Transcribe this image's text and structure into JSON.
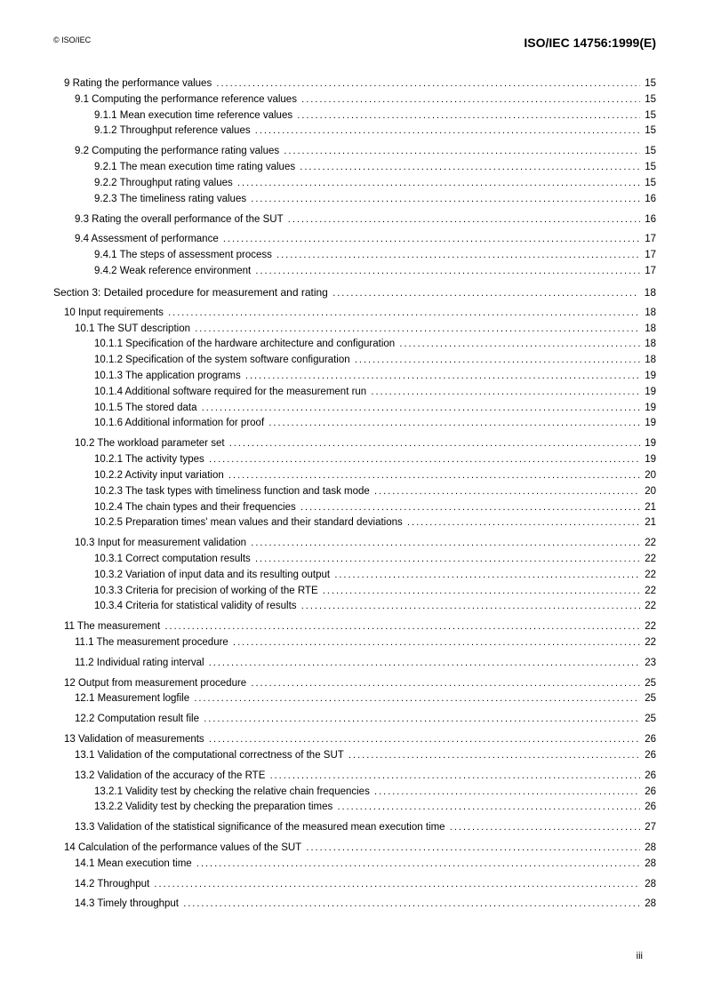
{
  "header": {
    "copyright": "© ISO/IEC",
    "standard_id": "ISO/IEC 14756:1999(E)"
  },
  "toc": [
    {
      "label": "9 Rating the performance values",
      "pg": "15",
      "lvl": 1,
      "gap": false,
      "sect": false
    },
    {
      "label": "9.1 Computing the performance reference values",
      "pg": "15",
      "lvl": 2,
      "gap": false,
      "sect": false
    },
    {
      "label": "9.1.1 Mean execution time reference values",
      "pg": "15",
      "lvl": 3,
      "gap": false,
      "sect": false
    },
    {
      "label": "9.1.2 Throughput reference values",
      "pg": "15",
      "lvl": 3,
      "gap": false,
      "sect": false
    },
    {
      "label": "9.2 Computing the performance rating values",
      "pg": "15",
      "lvl": 2,
      "gap": true,
      "sect": false
    },
    {
      "label": "9.2.1 The mean execution time rating values",
      "pg": "15",
      "lvl": 3,
      "gap": false,
      "sect": false
    },
    {
      "label": "9.2.2 Throughput rating values",
      "pg": "15",
      "lvl": 3,
      "gap": false,
      "sect": false
    },
    {
      "label": "9.2.3 The timeliness rating values",
      "pg": "16",
      "lvl": 3,
      "gap": false,
      "sect": false
    },
    {
      "label": "9.3 Rating the overall performance of the SUT",
      "pg": "16",
      "lvl": 2,
      "gap": true,
      "sect": false
    },
    {
      "label": "9.4 Assessment of performance",
      "pg": "17",
      "lvl": 2,
      "gap": true,
      "sect": false
    },
    {
      "label": "9.4.1 The steps of assessment process",
      "pg": "17",
      "lvl": 3,
      "gap": false,
      "sect": false
    },
    {
      "label": "9.4.2 Weak reference environment",
      "pg": "17",
      "lvl": 3,
      "gap": false,
      "sect": false
    },
    {
      "label": "Section 3: Detailed procedure for measurement and rating",
      "pg": "18",
      "lvl": 0,
      "gap": true,
      "sect": true
    },
    {
      "label": "10 Input requirements",
      "pg": "18",
      "lvl": 1,
      "gap": true,
      "sect": false
    },
    {
      "label": "10.1 The SUT description",
      "pg": "18",
      "lvl": 2,
      "gap": false,
      "sect": false
    },
    {
      "label": "10.1.1 Specification of the hardware architecture and configuration",
      "pg": "18",
      "lvl": 3,
      "gap": false,
      "sect": false
    },
    {
      "label": "10.1.2 Specification of the system software configuration",
      "pg": "18",
      "lvl": 3,
      "gap": false,
      "sect": false
    },
    {
      "label": "10.1.3 The application programs",
      "pg": "19",
      "lvl": 3,
      "gap": false,
      "sect": false
    },
    {
      "label": "10.1.4 Additional software required for the measurement run",
      "pg": "19",
      "lvl": 3,
      "gap": false,
      "sect": false
    },
    {
      "label": "10.1.5 The stored data",
      "pg": "19",
      "lvl": 3,
      "gap": false,
      "sect": false
    },
    {
      "label": "10.1.6 Additional information for proof",
      "pg": "19",
      "lvl": 3,
      "gap": false,
      "sect": false
    },
    {
      "label": "10.2 The workload parameter set",
      "pg": "19",
      "lvl": 2,
      "gap": true,
      "sect": false
    },
    {
      "label": "10.2.1 The activity types",
      "pg": "19",
      "lvl": 3,
      "gap": false,
      "sect": false
    },
    {
      "label": "10.2.2 Activity input variation",
      "pg": "20",
      "lvl": 3,
      "gap": false,
      "sect": false
    },
    {
      "label": "10.2.3 The task types with timeliness function and task mode",
      "pg": "20",
      "lvl": 3,
      "gap": false,
      "sect": false
    },
    {
      "label": "10.2.4 The chain types and their frequencies",
      "pg": "21",
      "lvl": 3,
      "gap": false,
      "sect": false
    },
    {
      "label": "10.2.5 Preparation times' mean values and their standard deviations",
      "pg": "21",
      "lvl": 3,
      "gap": false,
      "sect": false
    },
    {
      "label": "10.3 Input for measurement validation",
      "pg": "22",
      "lvl": 2,
      "gap": true,
      "sect": false
    },
    {
      "label": "10.3.1 Correct computation results",
      "pg": "22",
      "lvl": 3,
      "gap": false,
      "sect": false
    },
    {
      "label": "10.3.2 Variation of input data and its resulting output",
      "pg": "22",
      "lvl": 3,
      "gap": false,
      "sect": false
    },
    {
      "label": "10.3.3 Criteria for precision of working of the RTE",
      "pg": "22",
      "lvl": 3,
      "gap": false,
      "sect": false
    },
    {
      "label": "10.3.4 Criteria for statistical validity of results",
      "pg": "22",
      "lvl": 3,
      "gap": false,
      "sect": false
    },
    {
      "label": "11 The measurement",
      "pg": "22",
      "lvl": 1,
      "gap": true,
      "sect": false
    },
    {
      "label": "11.1 The measurement procedure",
      "pg": "22",
      "lvl": 2,
      "gap": false,
      "sect": false
    },
    {
      "label": "11.2 Individual rating interval",
      "pg": "23",
      "lvl": 2,
      "gap": true,
      "sect": false
    },
    {
      "label": "12 Output from measurement procedure",
      "pg": "25",
      "lvl": 1,
      "gap": true,
      "sect": false
    },
    {
      "label": "12.1 Measurement logfile",
      "pg": "25",
      "lvl": 2,
      "gap": false,
      "sect": false
    },
    {
      "label": "12.2 Computation result file",
      "pg": "25",
      "lvl": 2,
      "gap": true,
      "sect": false
    },
    {
      "label": "13 Validation of measurements",
      "pg": "26",
      "lvl": 1,
      "gap": true,
      "sect": false
    },
    {
      "label": "13.1 Validation of the computational correctness of the SUT",
      "pg": "26",
      "lvl": 2,
      "gap": false,
      "sect": false
    },
    {
      "label": "13.2 Validation of the accuracy of the RTE",
      "pg": "26",
      "lvl": 2,
      "gap": true,
      "sect": false
    },
    {
      "label": "13.2.1 Validity test by checking the relative chain frequencies",
      "pg": "26",
      "lvl": 3,
      "gap": false,
      "sect": false
    },
    {
      "label": "13.2.2 Validity test by checking the preparation times",
      "pg": "26",
      "lvl": 3,
      "gap": false,
      "sect": false
    },
    {
      "label": "13.3 Validation of the statistical significance of the measured mean execution time",
      "pg": "27",
      "lvl": 2,
      "gap": true,
      "sect": false
    },
    {
      "label": "14 Calculation of the performance values of the SUT",
      "pg": "28",
      "lvl": 1,
      "gap": true,
      "sect": false
    },
    {
      "label": "14.1 Mean execution time",
      "pg": "28",
      "lvl": 2,
      "gap": false,
      "sect": false
    },
    {
      "label": "14.2 Throughput",
      "pg": "28",
      "lvl": 2,
      "gap": true,
      "sect": false
    },
    {
      "label": "14.3 Timely throughput",
      "pg": "28",
      "lvl": 2,
      "gap": true,
      "sect": false
    }
  ],
  "footer": {
    "page_number": "iii"
  }
}
